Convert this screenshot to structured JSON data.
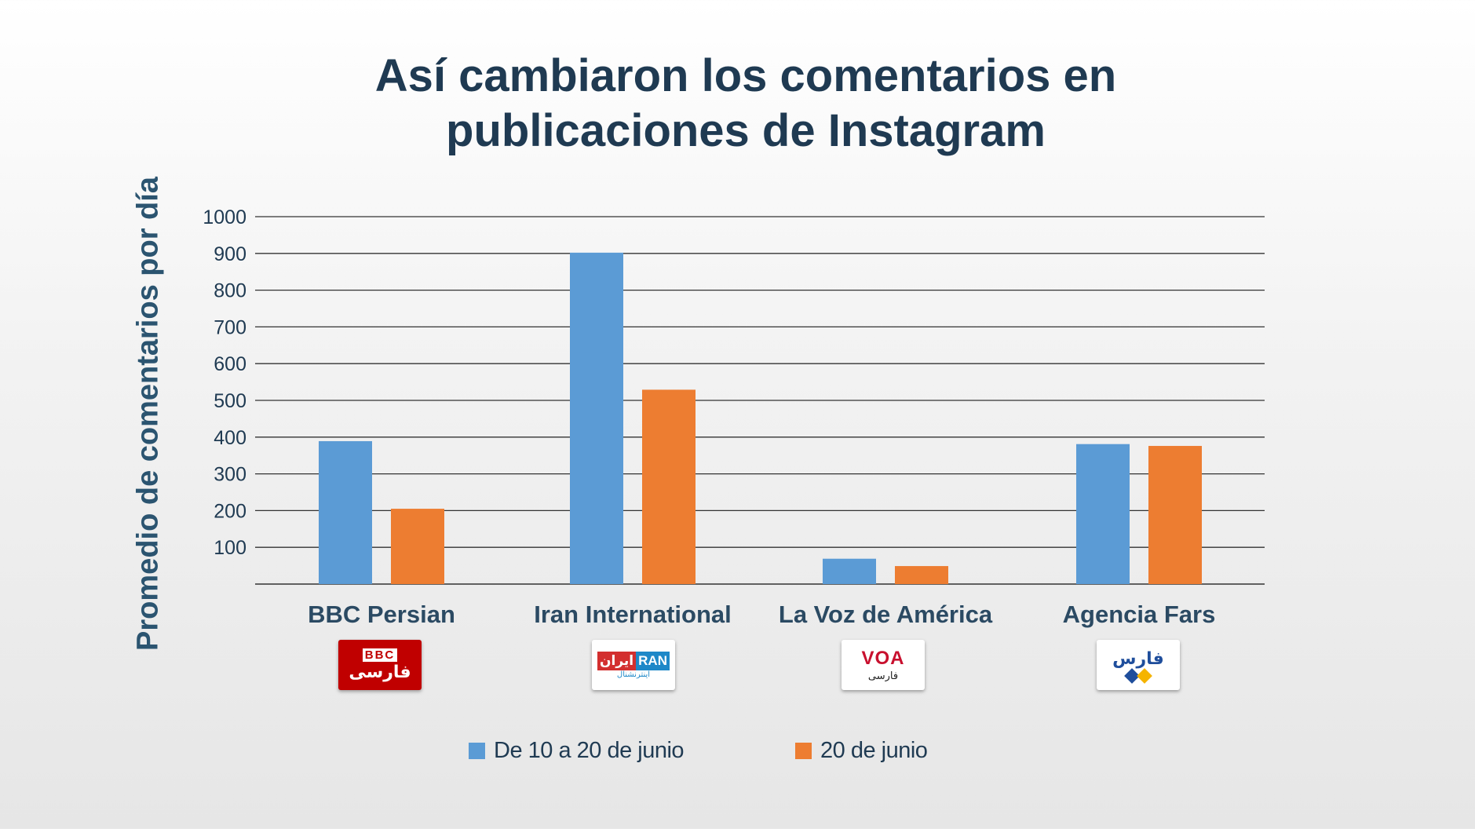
{
  "chart_data": {
    "type": "bar",
    "title": "Así cambiaron los comentarios en publicaciones de Instagram",
    "title_lines": [
      "Así cambiaron los comentarios en",
      "publicaciones de Instagram"
    ],
    "ylabel": "Promedio de comentarios por día",
    "xlabel": "",
    "ylim": [
      0,
      1000
    ],
    "yticks": [
      100,
      200,
      300,
      400,
      500,
      600,
      700,
      800,
      900,
      1000
    ],
    "grid": true,
    "legend_position": "bottom",
    "categories": [
      "BBC Persian",
      "Iran International",
      "La Voz de América",
      "Agencia Fars"
    ],
    "series": [
      {
        "name": "De 10 a 20 de junio",
        "color": "#5b9bd5",
        "values": [
          389,
          902,
          69,
          381
        ]
      },
      {
        "name": "20 de junio",
        "color": "#ed7d31",
        "values": [
          205,
          529,
          49,
          376
        ]
      }
    ]
  },
  "logos": [
    {
      "name": "bbc-persian-logo",
      "top": "BBC",
      "bottom": "فارسی"
    },
    {
      "name": "iran-international-logo",
      "top_red": "ایران",
      "top_blue": "RAN",
      "bottom": "اینترنشنال"
    },
    {
      "name": "voa-logo",
      "top": "VOA",
      "bottom": "فارسی"
    },
    {
      "name": "fars-logo",
      "top": "فارس"
    }
  ]
}
